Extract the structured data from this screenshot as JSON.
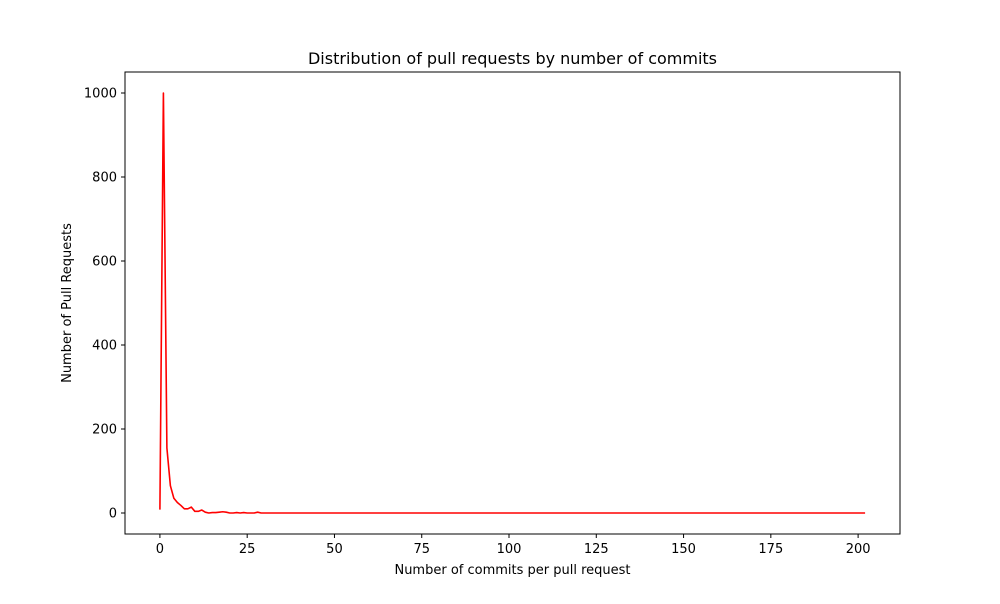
{
  "chart_data": {
    "type": "line",
    "title": "Distribution of pull requests by number of commits",
    "xlabel": "Number of commits per pull request",
    "ylabel": "Number of Pull Requests",
    "xlim": [
      -10,
      212
    ],
    "ylim": [
      -50,
      1050
    ],
    "xticks": [
      0,
      25,
      50,
      75,
      100,
      125,
      150,
      175,
      200
    ],
    "yticks": [
      0,
      200,
      400,
      600,
      800,
      1000
    ],
    "grid": false,
    "series": [
      {
        "color": "#ff0000",
        "points": [
          [
            0,
            8
          ],
          [
            1,
            1000
          ],
          [
            2,
            155
          ],
          [
            3,
            65
          ],
          [
            4,
            35
          ],
          [
            5,
            25
          ],
          [
            6,
            18
          ],
          [
            7,
            10
          ],
          [
            8,
            10
          ],
          [
            9,
            14
          ],
          [
            10,
            4
          ],
          [
            11,
            4
          ],
          [
            12,
            7
          ],
          [
            13,
            2
          ],
          [
            14,
            0
          ],
          [
            15,
            1
          ],
          [
            16,
            1
          ],
          [
            17,
            2
          ],
          [
            18,
            3
          ],
          [
            19,
            2
          ],
          [
            20,
            0
          ],
          [
            21,
            0
          ],
          [
            22,
            1
          ],
          [
            23,
            0
          ],
          [
            24,
            1
          ],
          [
            25,
            0
          ],
          [
            26,
            0
          ],
          [
            27,
            0
          ],
          [
            28,
            2
          ],
          [
            29,
            0
          ],
          [
            30,
            0
          ],
          [
            40,
            0
          ],
          [
            60,
            0
          ],
          [
            80,
            0
          ],
          [
            100,
            0
          ],
          [
            120,
            0
          ],
          [
            140,
            0
          ],
          [
            160,
            0
          ],
          [
            180,
            0
          ],
          [
            202,
            0
          ]
        ]
      }
    ]
  }
}
